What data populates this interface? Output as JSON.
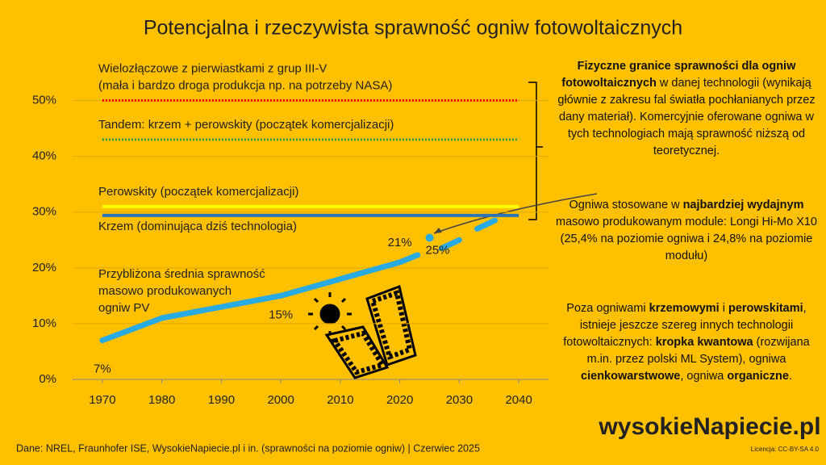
{
  "chart_data": {
    "type": "line",
    "title": "Potencjalna i rzeczywista sprawność ogniw fotowoltaicznych",
    "xlim": [
      1965,
      2045
    ],
    "xticks": [
      1970,
      1980,
      1990,
      2000,
      2010,
      2020,
      2030,
      2040
    ],
    "ylim": [
      0,
      55
    ],
    "yticks": [
      {
        "value": 0,
        "label": "0%"
      },
      {
        "value": 10,
        "label": "10%"
      },
      {
        "value": 20,
        "label": "20%"
      },
      {
        "value": 30,
        "label": "30%"
      },
      {
        "value": 40,
        "label": "40%"
      },
      {
        "value": 50,
        "label": "50%"
      }
    ],
    "grid": true,
    "limits": [
      {
        "label": [
          "Wielozłączowe z pierwiastkami z grup III-V",
          "(mała i bardzo droga produkcja np. na potrzeby NASA)"
        ],
        "value": 50,
        "color": "#ff0000",
        "style": "dotted"
      },
      {
        "label": [
          "Tandem: krzem + perowskity (początek komercjalizacji)"
        ],
        "value": 43,
        "color": "#2e9e4a",
        "style": "dotted"
      },
      {
        "label": [
          "Perowskity (początek komercjalizacji)"
        ],
        "value": 31,
        "color": "#ffff00",
        "style": "solid"
      },
      {
        "label": [
          "Krzem (dominująca dziś technologia)"
        ],
        "value": 29.4,
        "color": "#2e75b6",
        "style": "solid"
      }
    ],
    "series": [
      {
        "name": [
          "Przybliżona średnia sprawność",
          "masowo produkowanych",
          "ogniw PV"
        ],
        "color": "#29abe2",
        "x": [
          1970,
          1980,
          1990,
          2000,
          2010,
          2020,
          2023,
          2025,
          2027,
          2030,
          2031,
          2033,
          2036
        ],
        "values": [
          7,
          11,
          13,
          15,
          18,
          21,
          22.3,
          null,
          23.5,
          25,
          null,
          27,
          28.5
        ],
        "value_labels": [
          "7%",
          null,
          null,
          "15%",
          null,
          "21%",
          null,
          null,
          null,
          null,
          null,
          null,
          null
        ]
      },
      {
        "color": "#29abe2",
        "x": [
          2025
        ],
        "values": [
          25.4
        ],
        "value_labels": [
          "25%"
        ]
      }
    ]
  },
  "notes": [
    [
      {
        "t": "Fizyczne granice sprawności dla ogniw fotowoltaicznych",
        "b": true
      },
      {
        "t": " w danej technologii (wynikają głównie z zakresu fal światła pochłanianych przez dany materiał). Komercyjnie oferowane ogniwa w tych technologiach mają sprawność niższą od teoretycznej.",
        "b": false
      }
    ],
    [
      {
        "t": "Ogniwa stosowane w ",
        "b": false
      },
      {
        "t": "najbardziej wydajnym",
        "b": true
      },
      {
        "t": " masowo produkowanym module: Longi Hi-Mo X10 (25,4% na poziomie ogniwa i 24,8% na poziomie modułu)",
        "b": false
      }
    ],
    [
      {
        "t": "Poza ogniwami ",
        "b": false
      },
      {
        "t": "krzemowymi",
        "b": true
      },
      {
        "t": " i ",
        "b": false
      },
      {
        "t": "perowskitami",
        "b": true
      },
      {
        "t": ", istnieje jeszcze szereg innych technologii fotowoltaicznych: ",
        "b": false
      },
      {
        "t": "kropka kwantowa",
        "b": true
      },
      {
        "t": " (rozwijana m.in. przez polski ML System), ogniwa ",
        "b": false
      },
      {
        "t": "cienkowarstwowe",
        "b": true
      },
      {
        "t": ", ogniwa ",
        "b": false
      },
      {
        "t": "organiczne",
        "b": true
      },
      {
        "t": ".",
        "b": false
      }
    ]
  ],
  "footer": {
    "source": "Dane: NREL, Fraunhofer ISE, WysokieNapiecie.pl i in. (sprawności na poziomie ogniw)  |  Czerwiec 2025",
    "logo": "wysokieNapiecie.pl",
    "license": "Licencja: CC-BY-SA 4.0"
  }
}
